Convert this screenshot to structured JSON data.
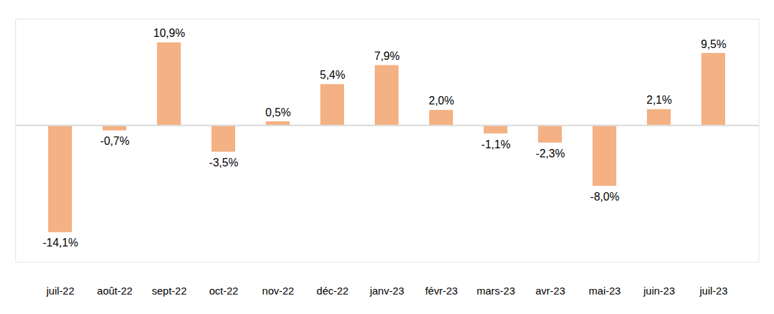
{
  "chart_data": {
    "type": "bar",
    "categories": [
      "juil-22",
      "août-22",
      "sept-22",
      "oct-22",
      "nov-22",
      "déc-22",
      "janv-23",
      "févr-23",
      "mars-23",
      "avr-23",
      "mai-23",
      "juin-23",
      "juil-23"
    ],
    "values": [
      -14.1,
      -0.7,
      10.9,
      -3.5,
      0.5,
      5.4,
      7.9,
      2.0,
      -1.1,
      -2.3,
      -8.0,
      2.1,
      9.5
    ],
    "value_labels": [
      "-14,1%",
      "-0,7%",
      "10,9%",
      "-3,5%",
      "0,5%",
      "5,4%",
      "7,9%",
      "2,0%",
      "-1,1%",
      "-2,3%",
      "-8,0%",
      "2,1%",
      "9,5%"
    ],
    "color": "#f4b183",
    "ylim": [
      -18,
      14
    ],
    "yticks": [
      0
    ],
    "grid": false,
    "data_labels": true,
    "tick_labels": "x"
  }
}
